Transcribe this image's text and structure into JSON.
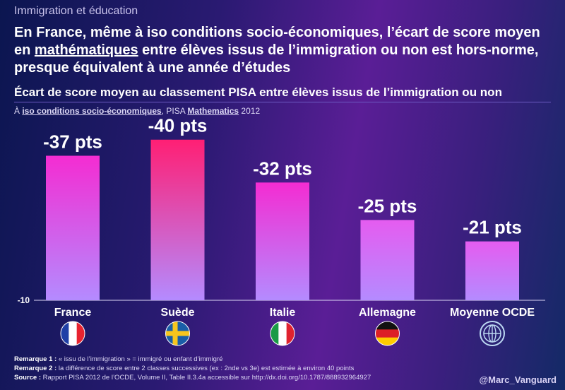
{
  "header": {
    "kicker": "Immigration et éducation",
    "headline_parts": [
      "En France, même à iso conditions socio-économiques, l’écart de score moyen en ",
      "mathématiques",
      " entre élèves issus de l’immigration ou non est hors-norme, presque équivalent à une année d’études"
    ],
    "subtitle": "Écart de score moyen au classement PISA entre élèves issus de l’immigration ou non",
    "note_prefix": "À ",
    "note_emph1": "iso conditions socio-économiques",
    "note_mid": ", PISA ",
    "note_emph2": "Mathematics",
    "note_suffix": " 2012"
  },
  "chart_data": {
    "type": "bar",
    "categories": [
      "France",
      "Suède",
      "Italie",
      "Allemagne",
      "Moyenne OCDE"
    ],
    "values": [
      -37,
      -40,
      -32,
      -25,
      -21
    ],
    "data_labels": [
      "-37 pts",
      "-40 pts",
      "-32 pts",
      "-25 pts",
      "-21 pts"
    ],
    "ylim": [
      -10,
      -43
    ],
    "baseline_label": "-10",
    "flags": [
      "france-flag",
      "sweden-flag",
      "italy-flag",
      "germany-flag",
      "globe-icon"
    ],
    "colors": {
      "bar_top_strong": "#ff1f74",
      "bar_top_mid": "#f42cd2",
      "bar_top_light": "#e55cf0",
      "bar_bottom": "#b48bff"
    }
  },
  "footer": {
    "r1_label": "Remarque 1 :",
    "r1_text": " « issu de l’immigration » = immigré ou enfant d’immigré",
    "r2_label": "Remarque 2 :",
    "r2_text": " la différence de score entre 2 classes successives (ex : 2nde vs 3e) est estimée à environ 40 points",
    "src_label": "Source :",
    "src_text": " Rapport PISA 2012 de l’OCDE, Volume II, Table II.3.4a accessible sur http://dx.doi.org/10.1787/888932964927"
  },
  "signature": "@Marc_Vanguard"
}
